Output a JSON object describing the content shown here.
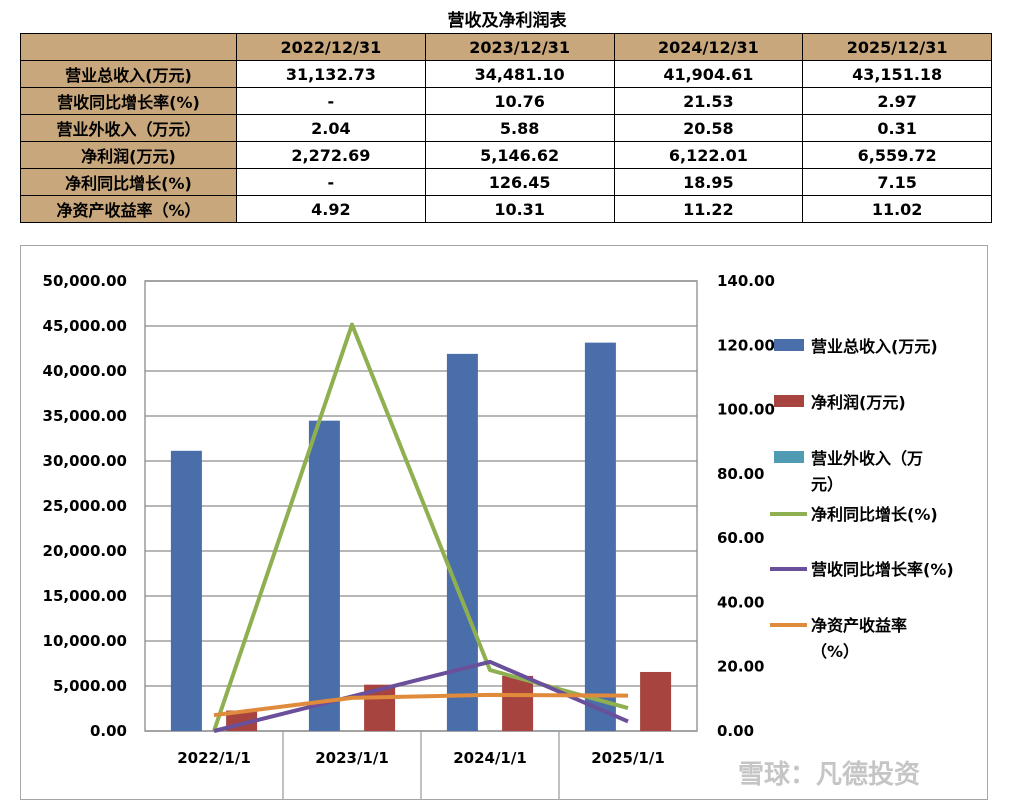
{
  "table": {
    "title": "营收及净利润表",
    "columns": [
      "",
      "2022/12/31",
      "2023/12/31",
      "2024/12/31",
      "2025/12/31"
    ],
    "rows": [
      {
        "label": "营业总收入(万元)",
        "values": [
          "31,132.73",
          "34,481.10",
          "41,904.61",
          "43,151.18"
        ]
      },
      {
        "label": "营收同比增长率(%)",
        "values": [
          "-",
          "10.76",
          "21.53",
          "2.97"
        ]
      },
      {
        "label": "营业外收入（万元）",
        "values": [
          "2.04",
          "5.88",
          "20.58",
          "0.31"
        ]
      },
      {
        "label": "净利润(万元)",
        "values": [
          "2,272.69",
          "5,146.62",
          "6,122.01",
          "6,559.72"
        ]
      },
      {
        "label": "净利同比增长(%)",
        "values": [
          "-",
          "126.45",
          "18.95",
          "7.15"
        ]
      },
      {
        "label": "净资产收益率（%）",
        "values": [
          "4.92",
          "10.31",
          "11.22",
          "11.02"
        ]
      }
    ]
  },
  "chart_data": {
    "type": "bar",
    "categories": [
      "2022/1/1",
      "2023/1/1",
      "2024/1/1",
      "2025/1/1"
    ],
    "ylim": [
      0,
      50000
    ],
    "yticks": [
      "0.00",
      "5,000.00",
      "10,000.00",
      "15,000.00",
      "20,000.00",
      "25,000.00",
      "30,000.00",
      "35,000.00",
      "40,000.00",
      "45,000.00",
      "50,000.00"
    ],
    "y2lim": [
      0,
      140
    ],
    "y2ticks": [
      "0.00",
      "20.00",
      "40.00",
      "60.00",
      "80.00",
      "100.00",
      "120.00",
      "140.00"
    ],
    "grid": true,
    "legend_position": "right",
    "series": [
      {
        "name": "营业总收入(万元)",
        "type": "bar",
        "axis": "left",
        "color": "#4a6ea9",
        "values": [
          31132.73,
          34481.1,
          41904.61,
          43151.18
        ]
      },
      {
        "name": "净利润(万元)",
        "type": "bar",
        "axis": "left",
        "color": "#a84440",
        "values": [
          2272.69,
          5146.62,
          6122.01,
          6559.72
        ]
      },
      {
        "name": "营业外收入（万元）",
        "type": "bar",
        "axis": "left",
        "color": "#4f9bb3",
        "values": [
          2.04,
          5.88,
          20.58,
          0.31
        ]
      },
      {
        "name": "净利同比增长(%)",
        "type": "line",
        "axis": "right",
        "color": "#8fb050",
        "values": [
          0,
          126.45,
          18.95,
          7.15
        ]
      },
      {
        "name": "营收同比增长率(%)",
        "type": "line",
        "axis": "right",
        "color": "#6a4f9a",
        "values": [
          0,
          10.76,
          21.53,
          2.97
        ]
      },
      {
        "name": "净资产收益率（%）",
        "type": "line",
        "axis": "right",
        "color": "#e08a3c",
        "values": [
          4.92,
          10.31,
          11.22,
          11.02
        ]
      }
    ],
    "legend": [
      {
        "lines": [
          "营业总收入(万元)"
        ]
      },
      {
        "lines": [
          "净利润(万元)"
        ]
      },
      {
        "lines": [
          "营业外收入（万",
          "元）"
        ]
      },
      {
        "lines": [
          "净利同比增长(%)"
        ]
      },
      {
        "lines": [
          "营收同比增长率(%)"
        ]
      },
      {
        "lines": [
          "净资产收益率",
          "（%）"
        ]
      }
    ]
  },
  "watermark": "雪球：凡德投资"
}
